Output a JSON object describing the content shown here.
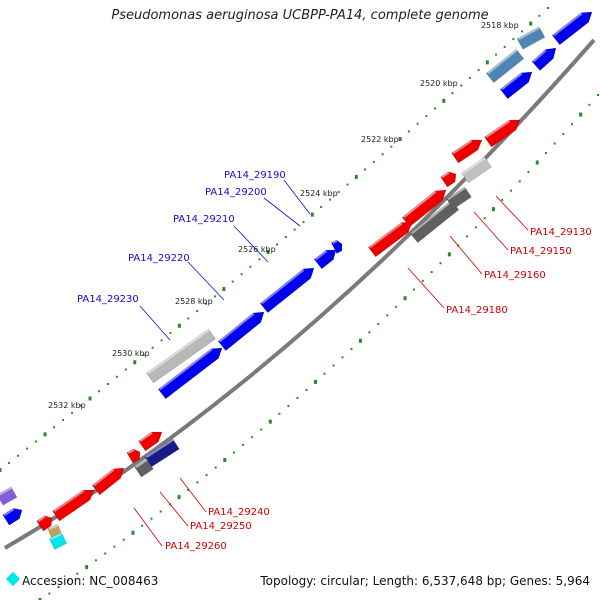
{
  "title": "Pseudomonas aeruginosa UCBPP-PA14, complete genome",
  "footer": {
    "accession": "Accession: NC_008463",
    "stats": "Topology: circular; Length: 6,537,648 bp; Genes: 5,964"
  },
  "colors": {
    "forward": "#0000ee",
    "reverse": "#ee0000",
    "label_forward": "#1010cc",
    "label_reverse": "#cc0000",
    "backbone": "#888888",
    "ticks": "#2a8a2a"
  },
  "ticks": [
    "2518 kbp",
    "2520 kbp",
    "2522 kbp",
    "2524 kbp",
    "2526 kbp",
    "2528 kbp",
    "2530 kbp",
    "2532 kbp"
  ],
  "gene_labels_forward": [
    "PA14_29190",
    "PA14_29200",
    "PA14_29210",
    "PA14_29220",
    "PA14_29230"
  ],
  "gene_labels_reverse": [
    "PA14_29130",
    "PA14_29150",
    "PA14_29160",
    "PA14_29180",
    "PA14_29240",
    "PA14_29250",
    "PA14_29260"
  ]
}
